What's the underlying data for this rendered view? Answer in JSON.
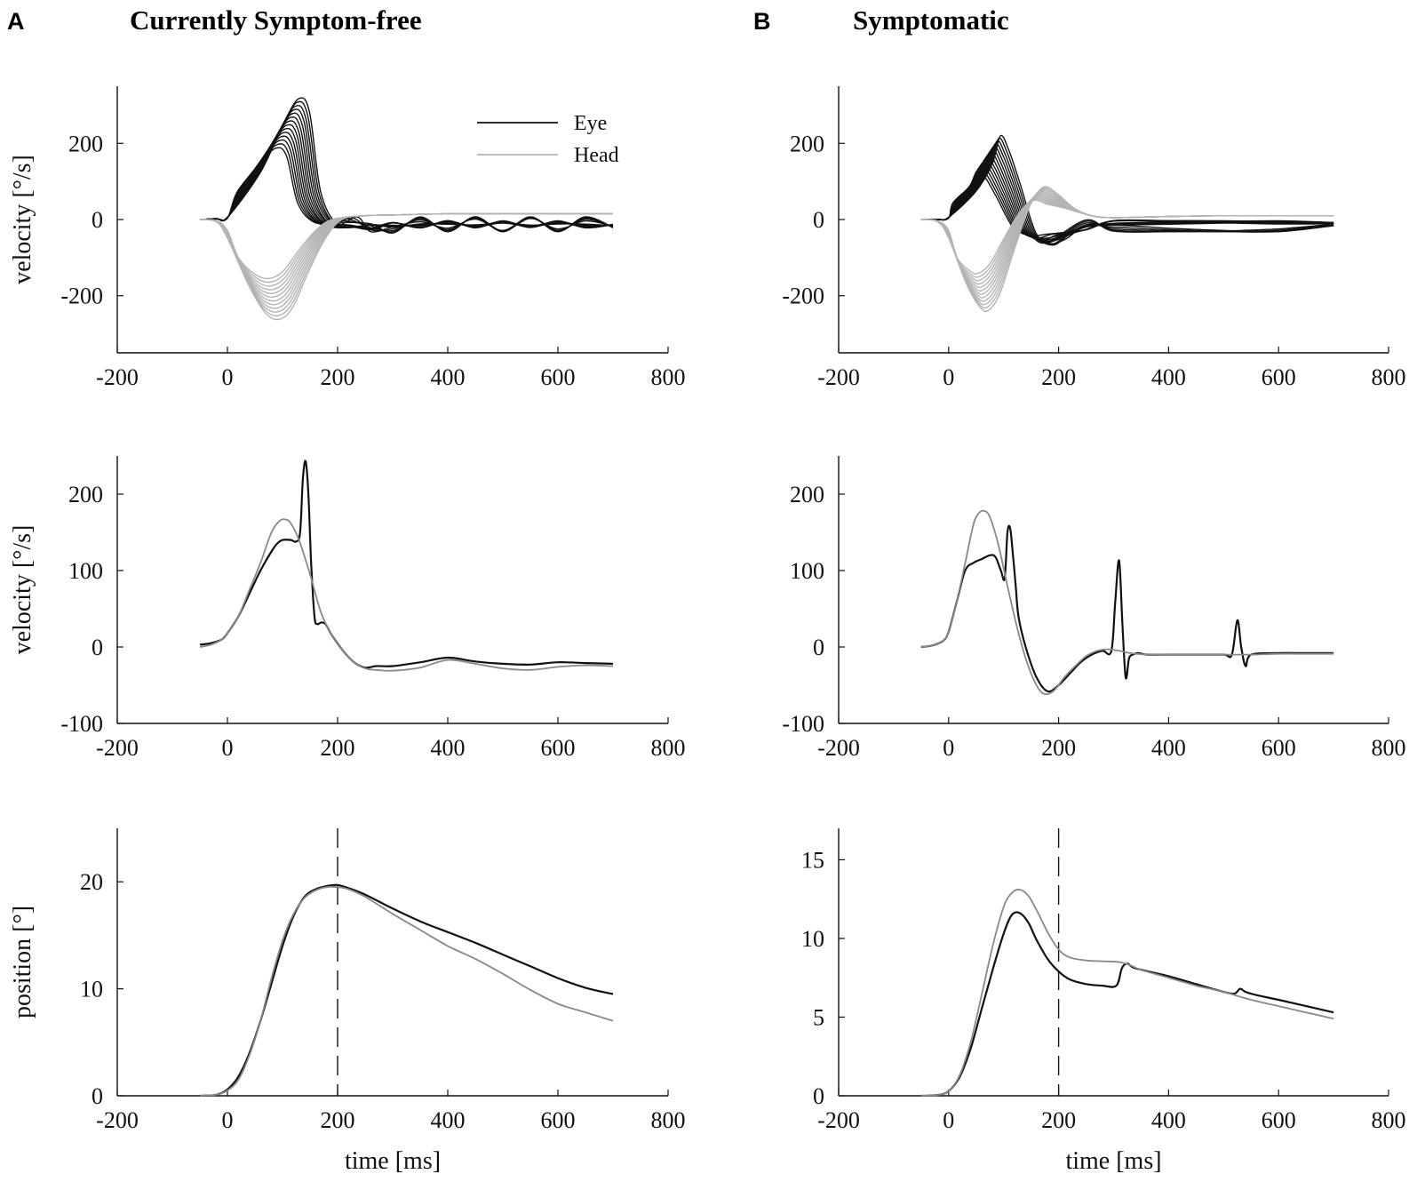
{
  "panels": [
    {
      "letter": "A",
      "title": "Currently Symptom-free"
    },
    {
      "letter": "B",
      "title": "Symptomatic"
    }
  ],
  "legend": {
    "eye": "Eye",
    "head": "Head"
  },
  "colors": {
    "eye": "#111111",
    "head": "#b4b4b4",
    "head_mean": "#888888",
    "axis": "#111111"
  },
  "chart_data": [
    {
      "id": "A1",
      "type": "line",
      "panel": "A",
      "title": "",
      "xlabel": "",
      "ylabel": "velocity [°/s]",
      "xlim": [
        -200,
        800
      ],
      "ylim": [
        -350,
        350
      ],
      "xticks": [
        -200,
        0,
        200,
        400,
        600,
        800
      ],
      "yticks": [
        -200,
        0,
        200
      ],
      "legend": true,
      "series": [
        {
          "name": "Eye (individual trials, representative)",
          "kind": "eye_bundle",
          "x": [
            -50,
            -20,
            0,
            40,
            80,
            110,
            130,
            150,
            180,
            220,
            260,
            300,
            350,
            400,
            450,
            500,
            550,
            600,
            650,
            700
          ],
          "y": [
            0,
            2,
            5,
            100,
            200,
            260,
            230,
            60,
            -10,
            -15,
            -20,
            -15,
            -15,
            -10,
            -15,
            -10,
            -15,
            -10,
            -15,
            -15
          ]
        },
        {
          "name": "Head (individual trials, representative)",
          "kind": "head_bundle",
          "x": [
            -50,
            -20,
            0,
            30,
            60,
            85,
            110,
            140,
            170,
            200,
            250,
            300,
            400,
            500,
            600,
            700
          ],
          "y": [
            0,
            -5,
            -40,
            -140,
            -200,
            -215,
            -190,
            -110,
            -40,
            0,
            10,
            12,
            15,
            15,
            15,
            15
          ]
        }
      ]
    },
    {
      "id": "B1",
      "type": "line",
      "panel": "B",
      "title": "",
      "xlabel": "",
      "ylabel": "",
      "xlim": [
        -200,
        800
      ],
      "ylim": [
        -350,
        350
      ],
      "xticks": [
        -200,
        0,
        200,
        400,
        600,
        800
      ],
      "yticks": [
        -200,
        0,
        200
      ],
      "legend": false,
      "series": [
        {
          "name": "Eye (individual trials, representative)",
          "kind": "eye_bundle",
          "x": [
            -50,
            -20,
            0,
            30,
            60,
            75,
            90,
            110,
            140,
            170,
            200,
            250,
            300,
            400,
            500,
            600,
            700
          ],
          "y": [
            0,
            0,
            5,
            60,
            120,
            180,
            150,
            80,
            -30,
            -55,
            -45,
            -20,
            -10,
            -10,
            -10,
            -10,
            -10
          ]
        },
        {
          "name": "Head (individual trials, representative)",
          "kind": "head_bundle",
          "x": [
            -50,
            -20,
            0,
            25,
            50,
            65,
            85,
            110,
            140,
            165,
            190,
            220,
            260,
            300,
            400,
            500,
            600,
            700
          ],
          "y": [
            0,
            -5,
            -40,
            -140,
            -190,
            -195,
            -160,
            -70,
            30,
            70,
            55,
            30,
            10,
            5,
            8,
            10,
            10,
            10
          ]
        }
      ]
    },
    {
      "id": "A2",
      "type": "line",
      "panel": "A",
      "title": "",
      "xlabel": "",
      "ylabel": "velocity [°/s]",
      "xlim": [
        -200,
        800
      ],
      "ylim": [
        -100,
        250
      ],
      "xticks": [
        -200,
        0,
        200,
        400,
        600,
        800
      ],
      "yticks": [
        -100,
        0,
        100,
        200
      ],
      "legend": false,
      "series": [
        {
          "name": "Eye",
          "x": [
            -50,
            -30,
            -10,
            0,
            20,
            40,
            60,
            80,
            90,
            100,
            115,
            125,
            132,
            137,
            142,
            147,
            152,
            158,
            163,
            170,
            178,
            190,
            210,
            230,
            250,
            270,
            300,
            350,
            400,
            450,
            500,
            550,
            600,
            650,
            700
          ],
          "y": [
            3,
            5,
            10,
            18,
            40,
            70,
            100,
            125,
            135,
            140,
            140,
            138,
            150,
            220,
            243,
            200,
            110,
            40,
            30,
            32,
            30,
            15,
            -5,
            -20,
            -27,
            -25,
            -25,
            -20,
            -14,
            -19,
            -22,
            -23,
            -20,
            -21,
            -22
          ]
        },
        {
          "name": "Head",
          "x": [
            -50,
            -30,
            -10,
            0,
            20,
            40,
            60,
            80,
            95,
            105,
            115,
            130,
            150,
            170,
            190,
            210,
            230,
            250,
            270,
            300,
            350,
            400,
            450,
            500,
            550,
            600,
            650,
            700
          ],
          "y": [
            0,
            3,
            10,
            18,
            40,
            75,
            110,
            150,
            165,
            167,
            162,
            140,
            95,
            45,
            15,
            -5,
            -20,
            -28,
            -30,
            -31,
            -27,
            -17,
            -22,
            -28,
            -30,
            -26,
            -24,
            -25
          ]
        }
      ]
    },
    {
      "id": "B2",
      "type": "line",
      "panel": "B",
      "title": "",
      "xlabel": "",
      "ylabel": "",
      "xlim": [
        -200,
        800
      ],
      "ylim": [
        -100,
        250
      ],
      "xticks": [
        -200,
        0,
        200,
        400,
        600,
        800
      ],
      "yticks": [
        -100,
        0,
        100,
        200
      ],
      "legend": false,
      "series": [
        {
          "name": "Eye",
          "x": [
            -50,
            -30,
            -10,
            0,
            15,
            30,
            45,
            60,
            75,
            85,
            95,
            102,
            107,
            112,
            117,
            122,
            127,
            140,
            160,
            180,
            200,
            220,
            240,
            260,
            280,
            296,
            303,
            310,
            316,
            322,
            328,
            335,
            345,
            360,
            400,
            450,
            500,
            515,
            525,
            532,
            540,
            550,
            600,
            650,
            700
          ],
          "y": [
            0,
            2,
            8,
            20,
            60,
            100,
            110,
            115,
            120,
            118,
            100,
            90,
            150,
            155,
            120,
            80,
            40,
            0,
            -40,
            -58,
            -50,
            -35,
            -20,
            -10,
            -5,
            -5,
            60,
            113,
            30,
            -40,
            -15,
            -10,
            -8,
            -10,
            -10,
            -10,
            -10,
            -10,
            35,
            0,
            -25,
            -10,
            -8,
            -8,
            -8
          ]
        },
        {
          "name": "Head",
          "x": [
            -50,
            -30,
            -10,
            0,
            15,
            30,
            45,
            55,
            65,
            75,
            90,
            110,
            130,
            150,
            170,
            190,
            210,
            230,
            250,
            270,
            290,
            310,
            330,
            360,
            400,
            450,
            500,
            550,
            600,
            650,
            700
          ],
          "y": [
            0,
            2,
            8,
            20,
            60,
            110,
            160,
            175,
            178,
            170,
            135,
            70,
            10,
            -35,
            -60,
            -58,
            -40,
            -25,
            -12,
            -5,
            -3,
            -5,
            -8,
            -10,
            -10,
            -10,
            -10,
            -10,
            -9,
            -9,
            -9
          ]
        }
      ]
    },
    {
      "id": "A3",
      "type": "line",
      "panel": "A",
      "title": "",
      "xlabel": "time [ms]",
      "ylabel": "position [°]",
      "xlim": [
        -200,
        800
      ],
      "ylim": [
        0,
        25
      ],
      "xticks": [
        -200,
        0,
        200,
        400,
        600,
        800
      ],
      "yticks": [
        0,
        10,
        20
      ],
      "legend": false,
      "vline": 200,
      "series": [
        {
          "name": "Eye",
          "x": [
            -50,
            -20,
            0,
            20,
            40,
            60,
            80,
            100,
            120,
            140,
            160,
            180,
            200,
            220,
            250,
            300,
            350,
            400,
            450,
            500,
            550,
            600,
            650,
            700
          ],
          "y": [
            0,
            0.1,
            0.6,
            1.8,
            4.0,
            7.0,
            10.5,
            14.0,
            16.8,
            18.6,
            19.3,
            19.6,
            19.7,
            19.4,
            18.8,
            17.5,
            16.3,
            15.3,
            14.3,
            13.2,
            12.1,
            11.0,
            10.1,
            9.5
          ]
        },
        {
          "name": "Head",
          "x": [
            -50,
            -20,
            0,
            20,
            40,
            60,
            80,
            100,
            120,
            140,
            160,
            180,
            200,
            220,
            250,
            300,
            350,
            400,
            450,
            500,
            550,
            600,
            650,
            700
          ],
          "y": [
            0,
            0.1,
            0.5,
            1.5,
            3.8,
            7.0,
            11.0,
            14.5,
            17.0,
            18.5,
            19.2,
            19.5,
            19.5,
            19.3,
            18.6,
            17.0,
            15.5,
            14.0,
            12.8,
            11.4,
            9.9,
            8.6,
            7.8,
            7.0
          ]
        }
      ]
    },
    {
      "id": "B3",
      "type": "line",
      "panel": "B",
      "title": "",
      "xlabel": "time [ms]",
      "ylabel": "",
      "xlim": [
        -200,
        800
      ],
      "ylim": [
        0,
        17
      ],
      "xticks": [
        -200,
        0,
        200,
        400,
        600,
        800
      ],
      "yticks": [
        0,
        5,
        10,
        15
      ],
      "legend": false,
      "vline": 200,
      "series": [
        {
          "name": "Eye",
          "x": [
            -50,
            -20,
            0,
            20,
            40,
            60,
            80,
            100,
            115,
            130,
            145,
            160,
            180,
            200,
            220,
            250,
            280,
            305,
            315,
            325,
            340,
            400,
            450,
            500,
            520,
            530,
            540,
            560,
            600,
            650,
            700
          ],
          "y": [
            0,
            0.05,
            0.3,
            1.2,
            3.0,
            5.5,
            8.0,
            10.3,
            11.5,
            11.6,
            11.0,
            9.9,
            8.7,
            7.9,
            7.4,
            7.1,
            7.0,
            7.0,
            8.1,
            8.4,
            8.1,
            7.6,
            7.1,
            6.6,
            6.5,
            6.8,
            6.6,
            6.4,
            6.1,
            5.7,
            5.3
          ]
        },
        {
          "name": "Head",
          "x": [
            -50,
            -20,
            0,
            20,
            40,
            60,
            80,
            100,
            115,
            130,
            145,
            160,
            180,
            200,
            220,
            250,
            280,
            310,
            330,
            350,
            400,
            450,
            500,
            550,
            600,
            650,
            700
          ],
          "y": [
            0,
            0.05,
            0.3,
            1.3,
            3.4,
            6.4,
            9.5,
            12.0,
            12.9,
            13.1,
            12.7,
            11.8,
            10.4,
            9.3,
            8.8,
            8.6,
            8.55,
            8.5,
            8.3,
            8.0,
            7.5,
            7.0,
            6.6,
            6.1,
            5.7,
            5.3,
            4.9
          ]
        }
      ]
    }
  ]
}
